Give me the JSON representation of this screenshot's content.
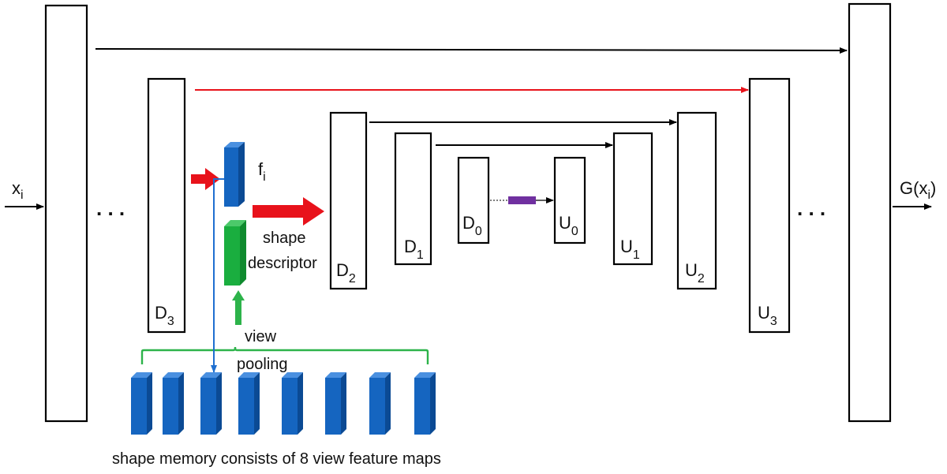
{
  "labels": {
    "input": "x",
    "input_sub": "i",
    "output_pre": "G(x",
    "output_sub": "i",
    "output_post": ")",
    "feature": "f",
    "feature_sub": "i",
    "shape_descriptor_line1": "shape",
    "shape_descriptor_line2": "descriptor",
    "view_pooling_line1": "view",
    "view_pooling_line2": "pooling",
    "ellipsis_left": ". . .",
    "ellipsis_right": ". . .",
    "caption": "shape memory consists of 8 view feature maps"
  },
  "blocks": {
    "D3": {
      "letter": "D",
      "sub": "3"
    },
    "D2": {
      "letter": "D",
      "sub": "2"
    },
    "D1": {
      "letter": "D",
      "sub": "1"
    },
    "D0": {
      "letter": "D",
      "sub": "0"
    },
    "U0": {
      "letter": "U",
      "sub": "0"
    },
    "U1": {
      "letter": "U",
      "sub": "1"
    },
    "U2": {
      "letter": "U",
      "sub": "2"
    },
    "U3": {
      "letter": "U",
      "sub": "3"
    }
  },
  "view_feature_maps": 8,
  "colors": {
    "skip_black": "#000000",
    "skip_red": "#e8121b",
    "feature_blue": "#1565c0",
    "descriptor_green": "#1aae3f",
    "pooling_green": "#2db34a",
    "bottleneck_purple": "#7030a0"
  }
}
